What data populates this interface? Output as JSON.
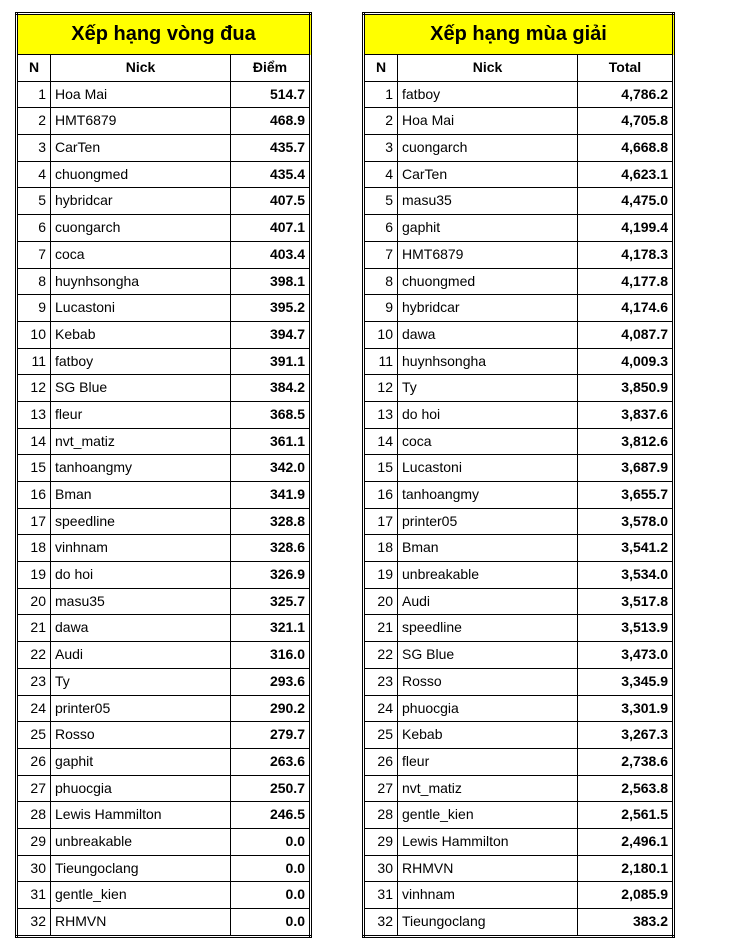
{
  "colors": {
    "header_bg": "#ffff00",
    "border": "#000000",
    "page_bg": "#ffffff"
  },
  "fonts": {
    "title_size_pt": 15,
    "cell_size_pt": 10.5,
    "family": "Arial"
  },
  "tables": [
    {
      "id": "t1",
      "title": "Xếp hạng vòng đua",
      "columns": [
        "N",
        "Nick",
        "Điểm"
      ],
      "rows": [
        [
          1,
          "Hoa Mai",
          "514.7"
        ],
        [
          2,
          "HMT6879",
          "468.9"
        ],
        [
          3,
          "CarTen",
          "435.7"
        ],
        [
          4,
          "chuongmed",
          "435.4"
        ],
        [
          5,
          "hybridcar",
          "407.5"
        ],
        [
          6,
          "cuongarch",
          "407.1"
        ],
        [
          7,
          "coca",
          "403.4"
        ],
        [
          8,
          "huynhsongha",
          "398.1"
        ],
        [
          9,
          "Lucastoni",
          "395.2"
        ],
        [
          10,
          "Kebab",
          "394.7"
        ],
        [
          11,
          "fatboy",
          "391.1"
        ],
        [
          12,
          "SG Blue",
          "384.2"
        ],
        [
          13,
          "fleur",
          "368.5"
        ],
        [
          14,
          "nvt_matiz",
          "361.1"
        ],
        [
          15,
          "tanhoangmy",
          "342.0"
        ],
        [
          16,
          "Bman",
          "341.9"
        ],
        [
          17,
          "speedline",
          "328.8"
        ],
        [
          18,
          "vinhnam",
          "328.6"
        ],
        [
          19,
          "do hoi",
          "326.9"
        ],
        [
          20,
          "masu35",
          "325.7"
        ],
        [
          21,
          "dawa",
          "321.1"
        ],
        [
          22,
          "Audi",
          "316.0"
        ],
        [
          23,
          "Ty",
          "293.6"
        ],
        [
          24,
          "printer05",
          "290.2"
        ],
        [
          25,
          "Rosso",
          "279.7"
        ],
        [
          26,
          "gaphit",
          "263.6"
        ],
        [
          27,
          "phuocgia",
          "250.7"
        ],
        [
          28,
          "Lewis Hammilton",
          "246.5"
        ],
        [
          29,
          "unbreakable",
          "0.0"
        ],
        [
          30,
          "Tieungoclang",
          "0.0"
        ],
        [
          31,
          "gentle_kien",
          "0.0"
        ],
        [
          32,
          "RHMVN",
          "0.0"
        ]
      ]
    },
    {
      "id": "t2",
      "title": "Xếp hạng mùa giải",
      "columns": [
        "N",
        "Nick",
        "Total"
      ],
      "rows": [
        [
          1,
          "fatboy",
          "4,786.2"
        ],
        [
          2,
          "Hoa Mai",
          "4,705.8"
        ],
        [
          3,
          "cuongarch",
          "4,668.8"
        ],
        [
          4,
          "CarTen",
          "4,623.1"
        ],
        [
          5,
          "masu35",
          "4,475.0"
        ],
        [
          6,
          "gaphit",
          "4,199.4"
        ],
        [
          7,
          "HMT6879",
          "4,178.3"
        ],
        [
          8,
          "chuongmed",
          "4,177.8"
        ],
        [
          9,
          "hybridcar",
          "4,174.6"
        ],
        [
          10,
          "dawa",
          "4,087.7"
        ],
        [
          11,
          "huynhsongha",
          "4,009.3"
        ],
        [
          12,
          "Ty",
          "3,850.9"
        ],
        [
          13,
          "do hoi",
          "3,837.6"
        ],
        [
          14,
          "coca",
          "3,812.6"
        ],
        [
          15,
          "Lucastoni",
          "3,687.9"
        ],
        [
          16,
          "tanhoangmy",
          "3,655.7"
        ],
        [
          17,
          "printer05",
          "3,578.0"
        ],
        [
          18,
          "Bman",
          "3,541.2"
        ],
        [
          19,
          "unbreakable",
          "3,534.0"
        ],
        [
          20,
          "Audi",
          "3,517.8"
        ],
        [
          21,
          "speedline",
          "3,513.9"
        ],
        [
          22,
          "SG Blue",
          "3,473.0"
        ],
        [
          23,
          "Rosso",
          "3,345.9"
        ],
        [
          24,
          "phuocgia",
          "3,301.9"
        ],
        [
          25,
          "Kebab",
          "3,267.3"
        ],
        [
          26,
          "fleur",
          "2,738.6"
        ],
        [
          27,
          "nvt_matiz",
          "2,563.8"
        ],
        [
          28,
          "gentle_kien",
          "2,561.5"
        ],
        [
          29,
          "Lewis Hammilton",
          "2,496.1"
        ],
        [
          30,
          "RHMVN",
          "2,180.1"
        ],
        [
          31,
          "vinhnam",
          "2,085.9"
        ],
        [
          32,
          "Tieungoclang",
          "383.2"
        ]
      ]
    }
  ]
}
